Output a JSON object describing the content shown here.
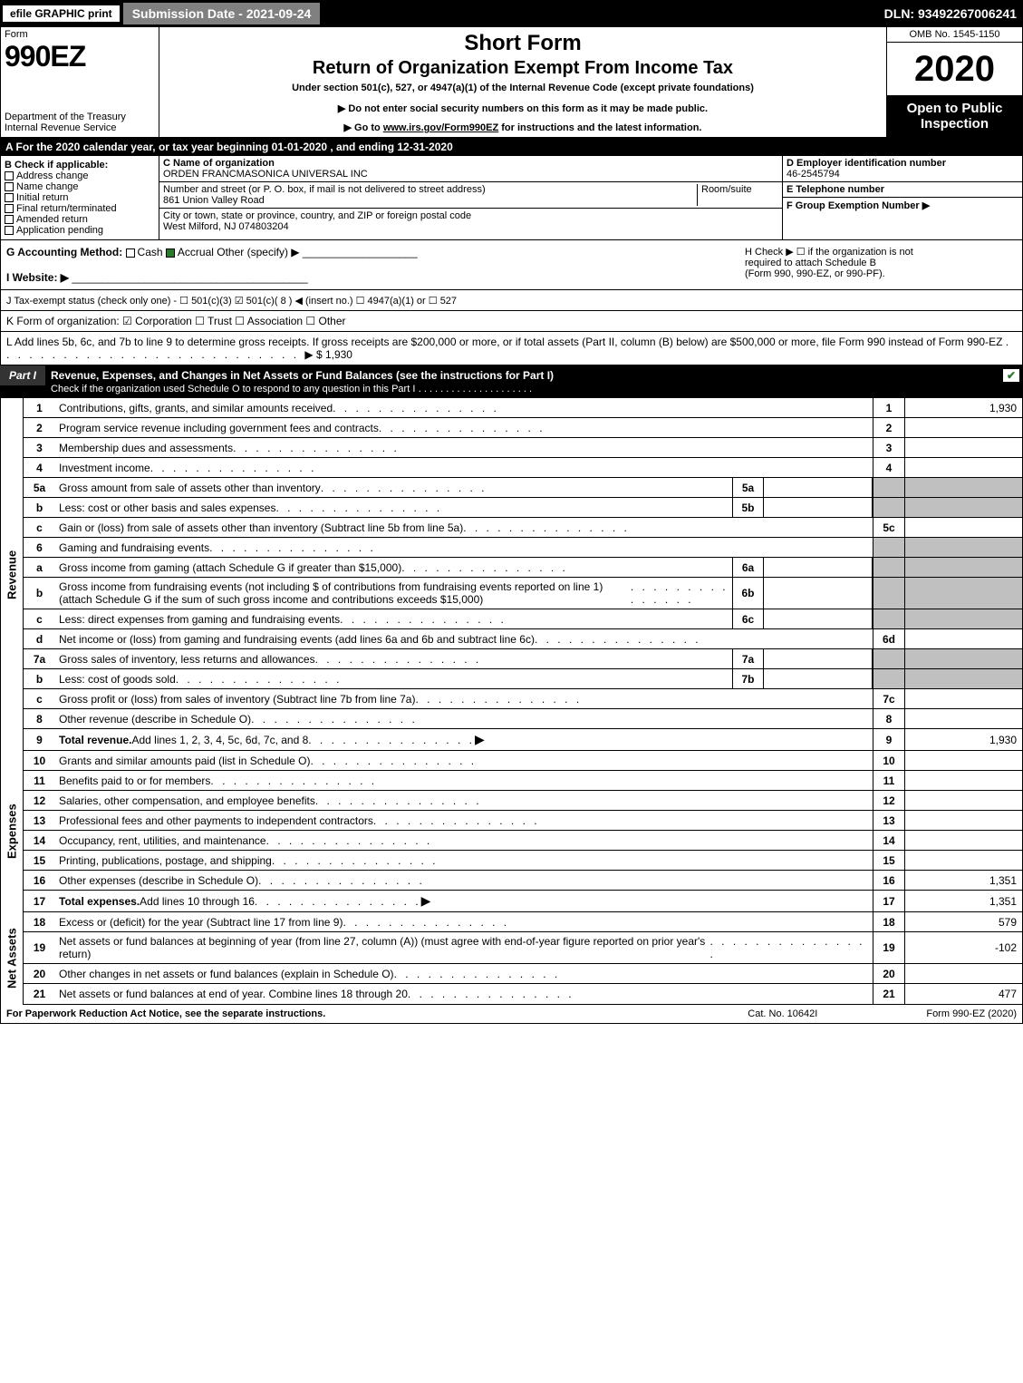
{
  "top": {
    "efile": "efile GRAPHIC print",
    "submission": "Submission Date - 2021-09-24",
    "dln": "DLN: 93492267006241"
  },
  "header": {
    "form_word": "Form",
    "form_num": "990EZ",
    "dept1": "Department of the Treasury",
    "dept2": "Internal Revenue Service",
    "short_form": "Short Form",
    "title": "Return of Organization Exempt From Income Tax",
    "under": "Under section 501(c), 527, or 4947(a)(1) of the Internal Revenue Code (except private foundations)",
    "warn": "▶ Do not enter social security numbers on this form as it may be made public.",
    "goto_pre": "▶ Go to ",
    "goto_link": "www.irs.gov/Form990EZ",
    "goto_post": " for instructions and the latest information.",
    "omb": "OMB No. 1545-1150",
    "year": "2020",
    "open": "Open to Public Inspection"
  },
  "period": "A For the 2020 calendar year, or tax year beginning 01-01-2020 , and ending 12-31-2020",
  "B": {
    "hdr": "B  Check if applicable:",
    "items": [
      "Address change",
      "Name change",
      "Initial return",
      "Final return/terminated",
      "Amended return",
      "Application pending"
    ]
  },
  "C": {
    "name_lbl": "C Name of organization",
    "name": "ORDEN FRANCMASONICA UNIVERSAL INC",
    "street_lbl": "Number and street (or P. O. box, if mail is not delivered to street address)",
    "room_lbl": "Room/suite",
    "street": "861 Union Valley Road",
    "city_lbl": "City or town, state or province, country, and ZIP or foreign postal code",
    "city": "West Milford, NJ  074803204"
  },
  "D": {
    "ein_lbl": "D Employer identification number",
    "ein": "46-2545794",
    "tel_lbl": "E Telephone number",
    "grp_lbl": "F Group Exemption Number   ▶"
  },
  "G": {
    "label": "G Accounting Method:",
    "cash": "Cash",
    "accrual": "Accrual",
    "other": "Other (specify) ▶"
  },
  "H": {
    "text1": "H  Check ▶  ☐  if the organization is not",
    "text2": "required to attach Schedule B",
    "text3": "(Form 990, 990-EZ, or 990-PF)."
  },
  "I": {
    "label": "I Website: ▶"
  },
  "J": {
    "text": "J Tax-exempt status (check only one) - ☐ 501(c)(3) ☑ 501(c)( 8 ) ◀ (insert no.) ☐ 4947(a)(1) or ☐ 527"
  },
  "K": {
    "text": "K Form of organization:  ☑ Corporation  ☐ Trust  ☐ Association  ☐ Other"
  },
  "L": {
    "text": "L Add lines 5b, 6c, and 7b to line 9 to determine gross receipts. If gross receipts are $200,000 or more, or if total assets (Part II, column (B) below) are $500,000 or more, file Form 990 instead of Form 990-EZ",
    "amount": "▶ $ 1,930"
  },
  "part1": {
    "tag": "Part I",
    "title": "Revenue, Expenses, and Changes in Net Assets or Fund Balances (see the instructions for Part I)",
    "check": "Check if the organization used Schedule O to respond to any question in this Part I"
  },
  "sides": {
    "revenue": "Revenue",
    "expenses": "Expenses",
    "netassets": "Net Assets"
  },
  "lines": {
    "l1": {
      "n": "1",
      "d": "Contributions, gifts, grants, and similar amounts received",
      "r": "1",
      "v": "1,930"
    },
    "l2": {
      "n": "2",
      "d": "Program service revenue including government fees and contracts",
      "r": "2",
      "v": ""
    },
    "l3": {
      "n": "3",
      "d": "Membership dues and assessments",
      "r": "3",
      "v": ""
    },
    "l4": {
      "n": "4",
      "d": "Investment income",
      "r": "4",
      "v": ""
    },
    "l5a": {
      "n": "5a",
      "d": "Gross amount from sale of assets other than inventory",
      "sb": "5a"
    },
    "l5b": {
      "n": "b",
      "d": "Less: cost or other basis and sales expenses",
      "sb": "5b"
    },
    "l5c": {
      "n": "c",
      "d": "Gain or (loss) from sale of assets other than inventory (Subtract line 5b from line 5a)",
      "r": "5c",
      "v": ""
    },
    "l6": {
      "n": "6",
      "d": "Gaming and fundraising events"
    },
    "l6a": {
      "n": "a",
      "d": "Gross income from gaming (attach Schedule G if greater than $15,000)",
      "sb": "6a"
    },
    "l6b": {
      "n": "b",
      "d": "Gross income from fundraising events (not including $                    of contributions from fundraising events reported on line 1) (attach Schedule G if the sum of such gross income and contributions exceeds $15,000)",
      "sb": "6b"
    },
    "l6c": {
      "n": "c",
      "d": "Less: direct expenses from gaming and fundraising events",
      "sb": "6c"
    },
    "l6d": {
      "n": "d",
      "d": "Net income or (loss) from gaming and fundraising events (add lines 6a and 6b and subtract line 6c)",
      "r": "6d",
      "v": ""
    },
    "l7a": {
      "n": "7a",
      "d": "Gross sales of inventory, less returns and allowances",
      "sb": "7a"
    },
    "l7b": {
      "n": "b",
      "d": "Less: cost of goods sold",
      "sb": "7b"
    },
    "l7c": {
      "n": "c",
      "d": "Gross profit or (loss) from sales of inventory (Subtract line 7b from line 7a)",
      "r": "7c",
      "v": ""
    },
    "l8": {
      "n": "8",
      "d": "Other revenue (describe in Schedule O)",
      "r": "8",
      "v": ""
    },
    "l9": {
      "n": "9",
      "d": "Total revenue. Add lines 1, 2, 3, 4, 5c, 6d, 7c, and 8",
      "r": "9",
      "v": "1,930",
      "arrow": true,
      "bold": true
    },
    "l10": {
      "n": "10",
      "d": "Grants and similar amounts paid (list in Schedule O)",
      "r": "10",
      "v": ""
    },
    "l11": {
      "n": "11",
      "d": "Benefits paid to or for members",
      "r": "11",
      "v": ""
    },
    "l12": {
      "n": "12",
      "d": "Salaries, other compensation, and employee benefits",
      "r": "12",
      "v": ""
    },
    "l13": {
      "n": "13",
      "d": "Professional fees and other payments to independent contractors",
      "r": "13",
      "v": ""
    },
    "l14": {
      "n": "14",
      "d": "Occupancy, rent, utilities, and maintenance",
      "r": "14",
      "v": ""
    },
    "l15": {
      "n": "15",
      "d": "Printing, publications, postage, and shipping",
      "r": "15",
      "v": ""
    },
    "l16": {
      "n": "16",
      "d": "Other expenses (describe in Schedule O)",
      "r": "16",
      "v": "1,351"
    },
    "l17": {
      "n": "17",
      "d": "Total expenses. Add lines 10 through 16",
      "r": "17",
      "v": "1,351",
      "arrow": true,
      "bold": true
    },
    "l18": {
      "n": "18",
      "d": "Excess or (deficit) for the year (Subtract line 17 from line 9)",
      "r": "18",
      "v": "579"
    },
    "l19": {
      "n": "19",
      "d": "Net assets or fund balances at beginning of year (from line 27, column (A)) (must agree with end-of-year figure reported on prior year's return)",
      "r": "19",
      "v": "-102"
    },
    "l20": {
      "n": "20",
      "d": "Other changes in net assets or fund balances (explain in Schedule O)",
      "r": "20",
      "v": ""
    },
    "l21": {
      "n": "21",
      "d": "Net assets or fund balances at end of year. Combine lines 18 through 20",
      "r": "21",
      "v": "477"
    }
  },
  "footer": {
    "left": "For Paperwork Reduction Act Notice, see the separate instructions.",
    "mid": "Cat. No. 10642I",
    "right": "Form 990-EZ (2020)"
  }
}
